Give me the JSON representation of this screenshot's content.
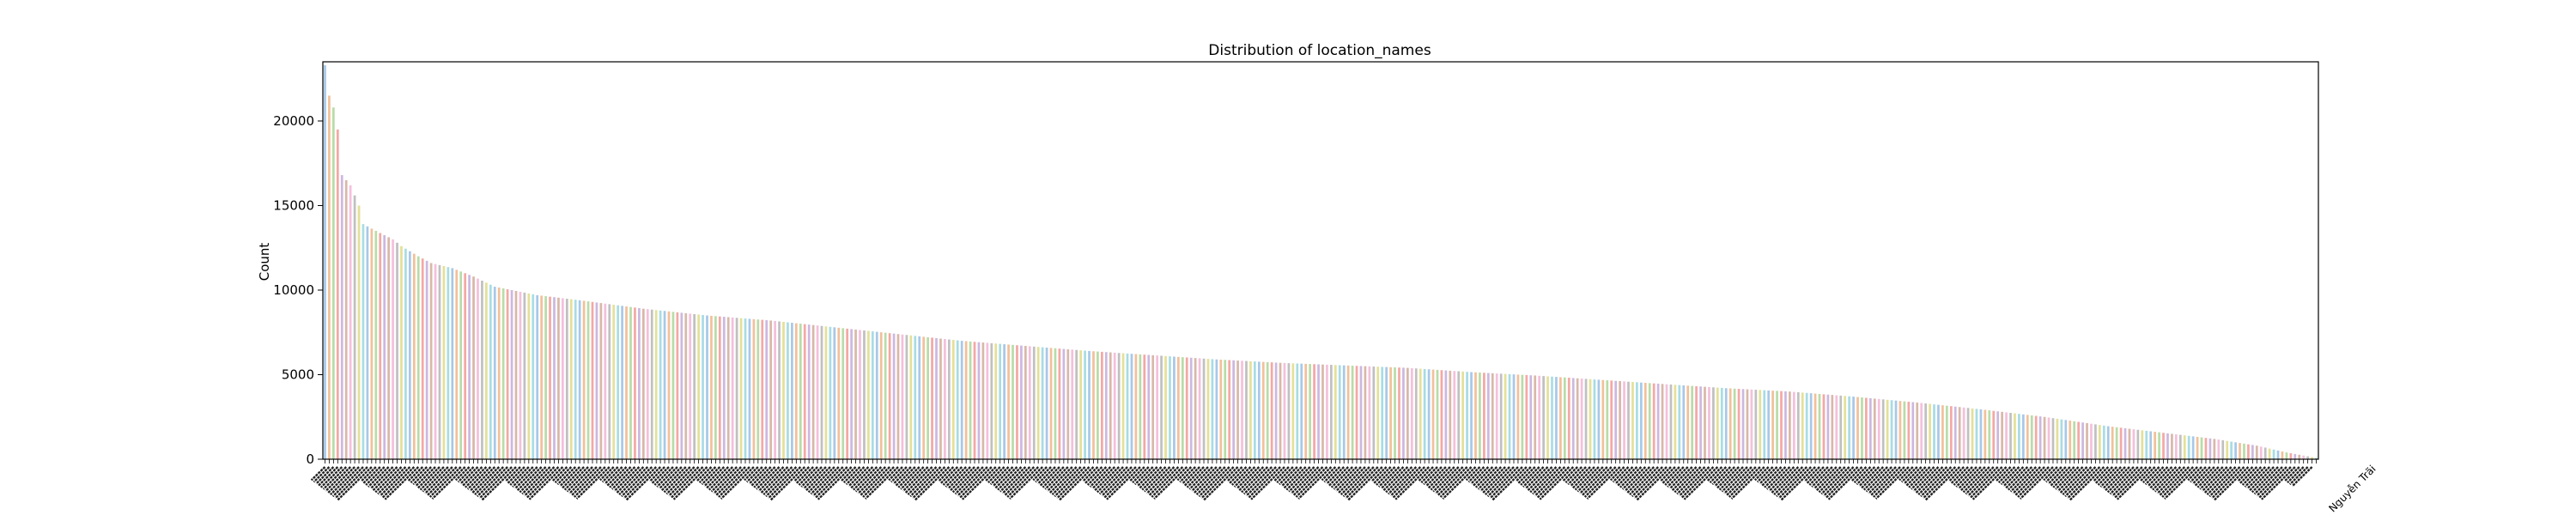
{
  "chart_data": {
    "type": "bar",
    "title": "Distribution of location_names",
    "xlabel": "",
    "ylabel": "Count",
    "ylim": [
      0,
      23500
    ],
    "yticks": [
      0,
      5000,
      10000,
      15000,
      20000
    ],
    "grid": false,
    "bar_colors": [
      "#a8c8e8",
      "#f2c09a",
      "#b8dca8",
      "#f4a8a4",
      "#ccb8e0",
      "#d8b8a8",
      "#f4c0dc",
      "#c0c0c0",
      "#e4e098",
      "#a8dce4"
    ],
    "category_count": 470,
    "last_category_label": "Nguyễn Trãi",
    "profile": [
      [
        0,
        23300
      ],
      [
        1,
        21500
      ],
      [
        2,
        20800
      ],
      [
        3,
        19500
      ],
      [
        4,
        16800
      ],
      [
        5,
        16500
      ],
      [
        6,
        16200
      ],
      [
        8,
        15000
      ],
      [
        9,
        13900
      ],
      [
        12,
        13500
      ],
      [
        16,
        13000
      ],
      [
        18,
        12600
      ],
      [
        22,
        12000
      ],
      [
        25,
        11600
      ],
      [
        30,
        11300
      ],
      [
        35,
        10800
      ],
      [
        40,
        10200
      ],
      [
        50,
        9700
      ],
      [
        60,
        9400
      ],
      [
        75,
        8900
      ],
      [
        90,
        8500
      ],
      [
        105,
        8200
      ],
      [
        120,
        7800
      ],
      [
        135,
        7400
      ],
      [
        150,
        7000
      ],
      [
        165,
        6700
      ],
      [
        180,
        6400
      ],
      [
        195,
        6150
      ],
      [
        210,
        5900
      ],
      [
        225,
        5700
      ],
      [
        240,
        5550
      ],
      [
        255,
        5400
      ],
      [
        270,
        5150
      ],
      [
        285,
        4950
      ],
      [
        300,
        4700
      ],
      [
        315,
        4450
      ],
      [
        330,
        4200
      ],
      [
        345,
        4000
      ],
      [
        360,
        3700
      ],
      [
        375,
        3350
      ],
      [
        390,
        2950
      ],
      [
        405,
        2500
      ],
      [
        420,
        1950
      ],
      [
        435,
        1500
      ],
      [
        445,
        1200
      ],
      [
        455,
        800
      ],
      [
        462,
        400
      ],
      [
        469,
        80
      ]
    ]
  }
}
